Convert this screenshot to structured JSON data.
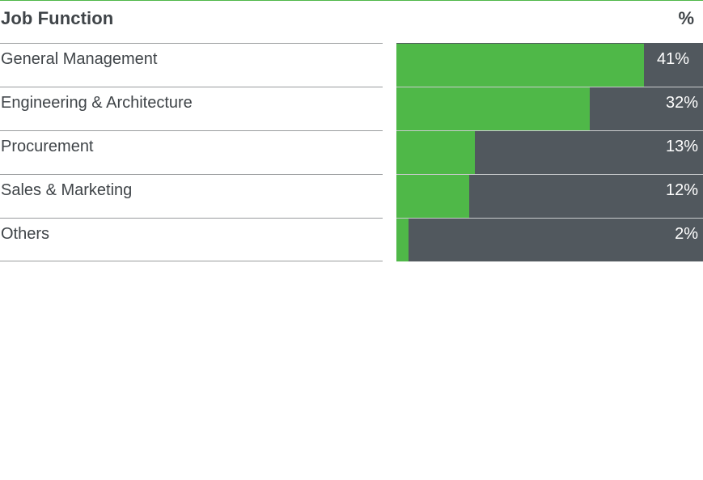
{
  "header": {
    "title": "Job Function",
    "unit": "%"
  },
  "colors": {
    "fill": "#4fb848",
    "track": "#51585e",
    "text": "#3f4448",
    "accent_rule": "#4fb848"
  },
  "chart_data": {
    "type": "bar",
    "orientation": "horizontal",
    "title": "Job Function",
    "value_header": "%",
    "xlim": [
      0,
      50
    ],
    "categories": [
      "General Management",
      "Engineering & Architecture",
      "Procurement",
      "Sales & Marketing",
      "Others"
    ],
    "values": [
      41,
      32,
      13,
      12,
      2
    ],
    "value_labels": [
      "41%",
      "32%",
      "13%",
      "12%",
      "2%"
    ]
  }
}
